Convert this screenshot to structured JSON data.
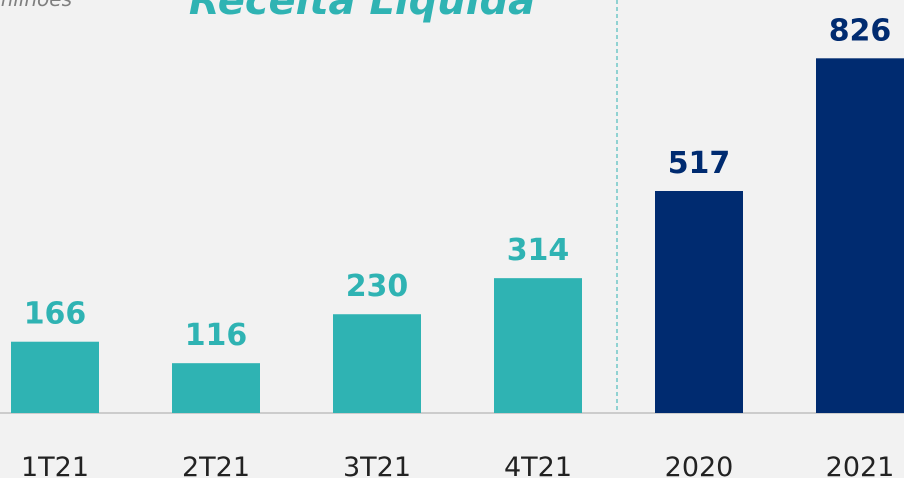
{
  "chart_data": {
    "type": "bar",
    "title": "Receita Líquida",
    "subtitle": "R$ milhões",
    "categories": [
      "1T21",
      "2T21",
      "3T21",
      "4T21",
      "2020",
      "2021"
    ],
    "values": [
      166,
      116,
      230,
      314,
      517,
      826
    ],
    "colors": [
      "#2fb3b3",
      "#2fb3b3",
      "#2fb3b3",
      "#2fb3b3",
      "#002b70",
      "#002b70"
    ],
    "ylim": [
      0,
      850
    ]
  }
}
